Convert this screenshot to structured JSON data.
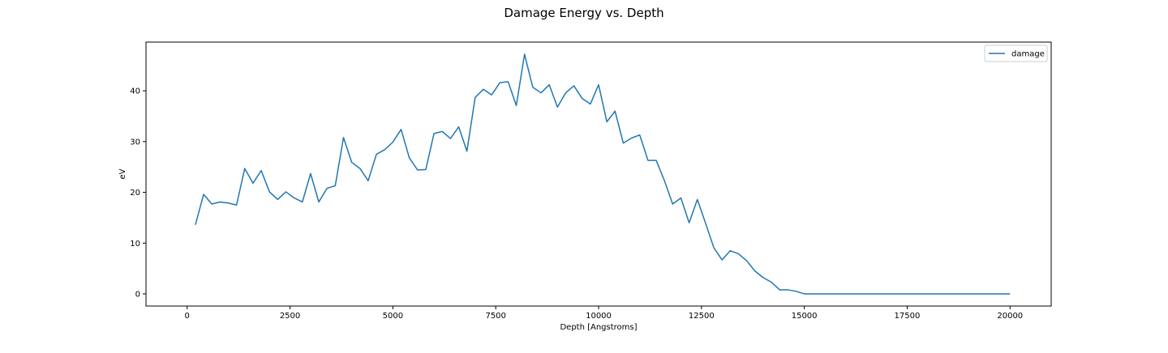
{
  "chart_data": {
    "type": "line",
    "title": "Damage Energy vs. Depth",
    "xlabel": "Depth [Angstroms]",
    "ylabel": "eV",
    "xlim": [
      -1000,
      21000
    ],
    "ylim": [
      -2.4,
      49.6
    ],
    "xticks": [
      0,
      2500,
      5000,
      7500,
      10000,
      12500,
      15000,
      17500,
      20000
    ],
    "yticks": [
      0,
      10,
      20,
      30,
      40
    ],
    "grid": false,
    "legend_position": "top-right",
    "series": [
      {
        "name": "damage",
        "color": "#1f77b4",
        "x": [
          200,
          400,
          600,
          800,
          1000,
          1200,
          1400,
          1600,
          1800,
          2000,
          2200,
          2400,
          2600,
          2800,
          3000,
          3200,
          3400,
          3600,
          3800,
          4000,
          4200,
          4400,
          4600,
          4800,
          5000,
          5200,
          5400,
          5600,
          5800,
          6000,
          6200,
          6400,
          6600,
          6800,
          7000,
          7200,
          7400,
          7600,
          7800,
          8000,
          8200,
          8400,
          8600,
          8800,
          9000,
          9200,
          9400,
          9600,
          9800,
          10000,
          10200,
          10400,
          10600,
          10800,
          11000,
          11200,
          11400,
          11600,
          11800,
          12000,
          12200,
          12400,
          12600,
          12800,
          13000,
          13200,
          13400,
          13600,
          13800,
          14000,
          14200,
          14400,
          14600,
          14800,
          15000,
          15200,
          15400,
          15600,
          15800,
          16000,
          16200,
          16400,
          16600,
          16800,
          17000,
          17200,
          17400,
          17600,
          17800,
          18000,
          18200,
          18400,
          18600,
          18800,
          19000,
          19200,
          19400,
          19600,
          19800,
          20000
        ],
        "y": [
          13.6,
          19.6,
          17.7,
          18.1,
          17.9,
          17.5,
          24.7,
          21.8,
          24.3,
          20.1,
          18.6,
          20.1,
          18.9,
          18.1,
          23.7,
          18.1,
          20.8,
          21.3,
          30.8,
          25.9,
          24.7,
          22.3,
          27.5,
          28.4,
          29.9,
          32.4,
          26.8,
          24.4,
          24.5,
          31.6,
          32.0,
          30.6,
          32.9,
          28.1,
          38.7,
          40.3,
          39.2,
          41.6,
          41.8,
          37.1,
          47.2,
          40.7,
          39.6,
          41.2,
          36.8,
          39.6,
          41.0,
          38.5,
          37.4,
          41.2,
          33.9,
          36.0,
          29.7,
          30.7,
          31.3,
          26.3,
          26.3,
          22.3,
          17.7,
          18.9,
          14.0,
          18.6,
          13.9,
          9.1,
          6.7,
          8.5,
          7.9,
          6.5,
          4.5,
          3.2,
          2.3,
          0.8,
          0.8,
          0.5,
          0.0,
          0.0,
          0.0,
          0.0,
          0.0,
          0.0,
          0.0,
          0.0,
          0.0,
          0.0,
          0.0,
          0.0,
          0.0,
          0.0,
          0.0,
          0.0,
          0.0,
          0.0,
          0.0,
          0.0,
          0.0,
          0.0,
          0.0,
          0.0,
          0.0,
          0.0
        ]
      }
    ]
  }
}
